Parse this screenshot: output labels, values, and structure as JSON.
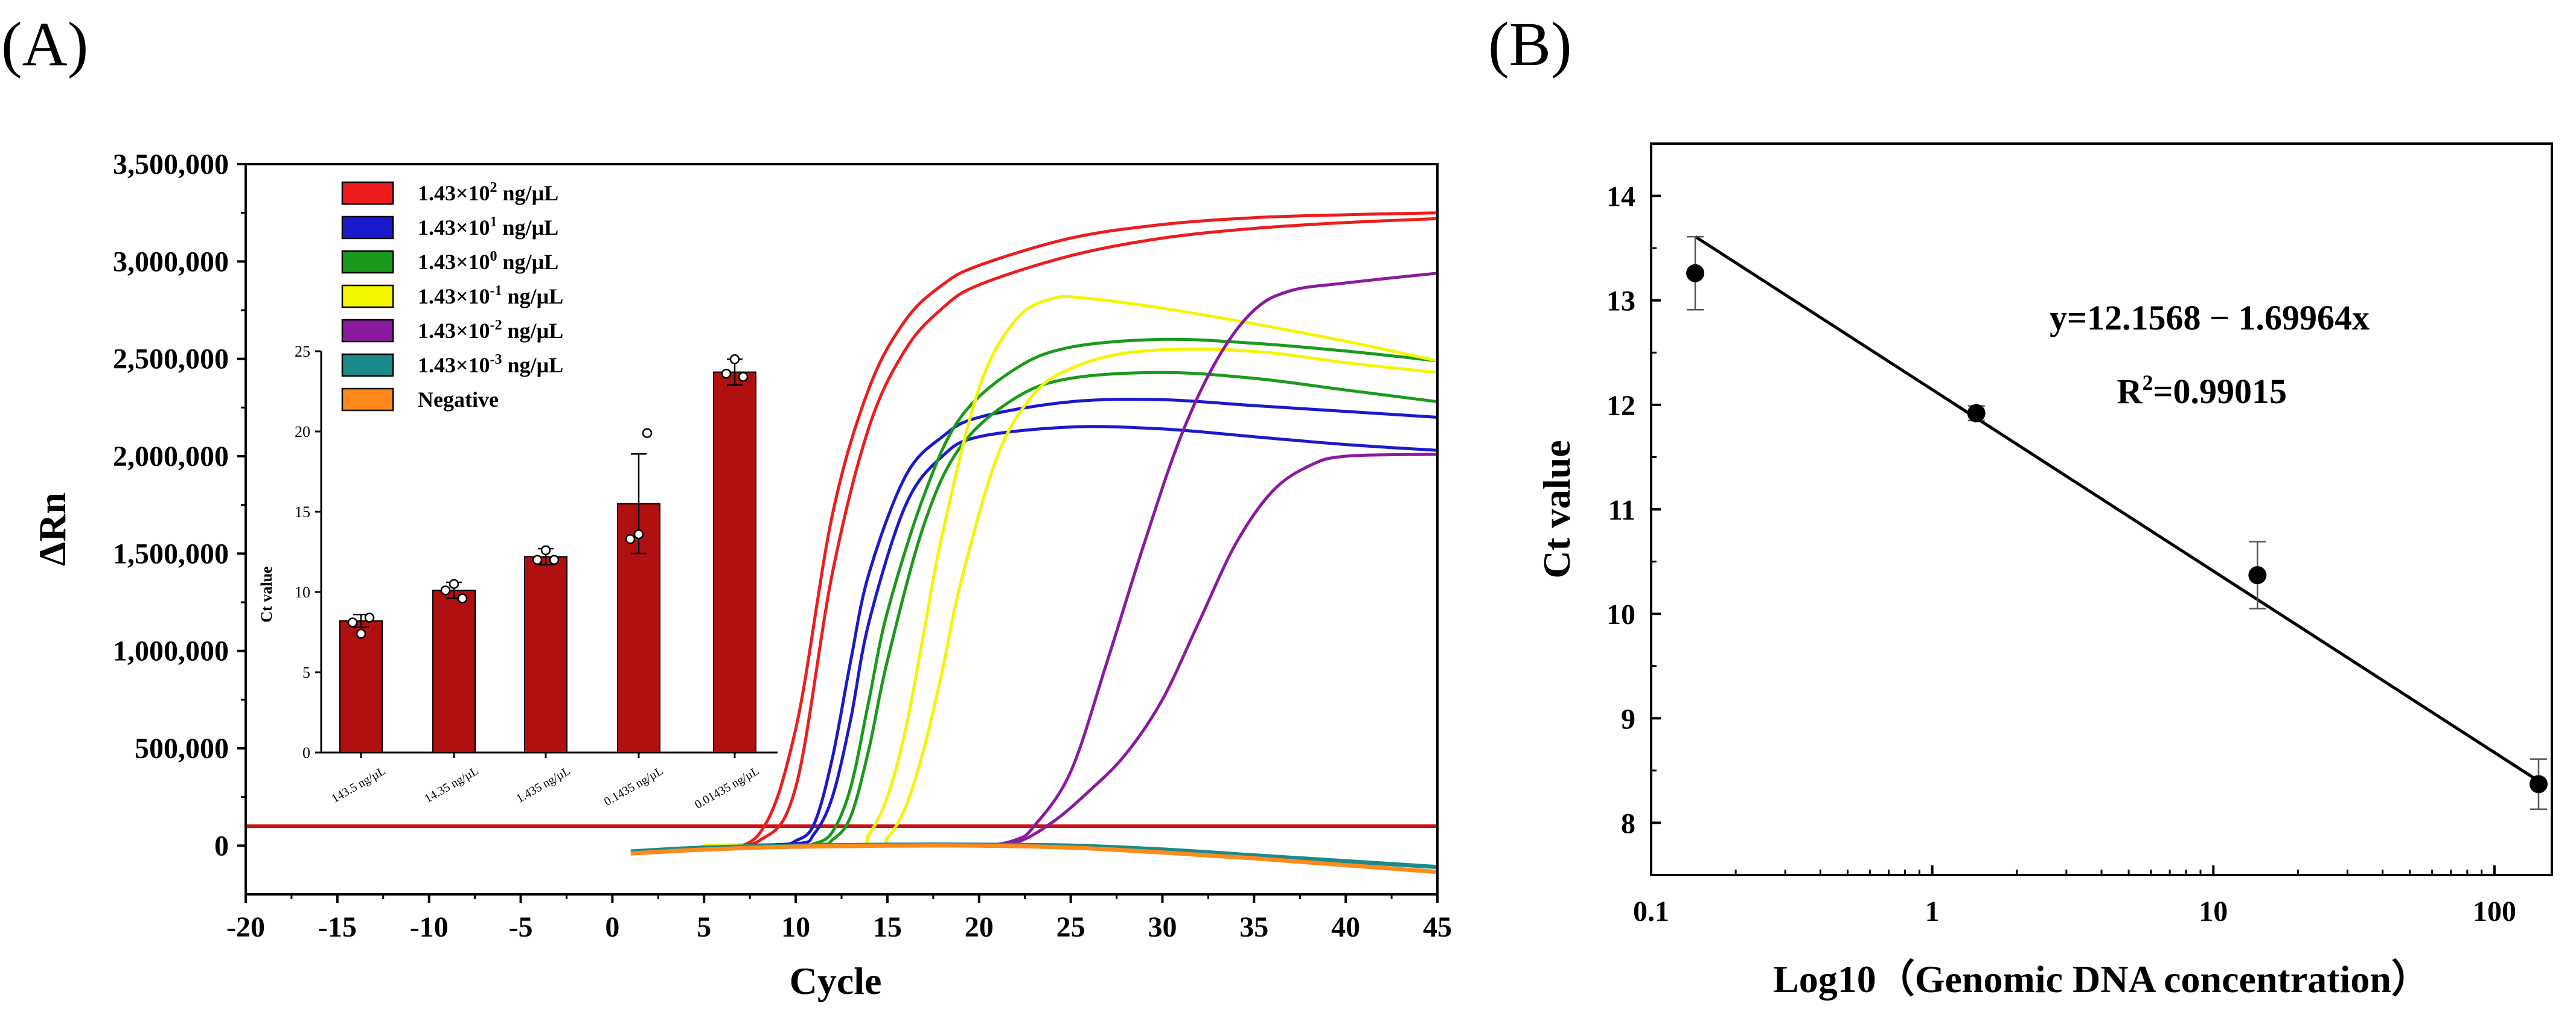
{
  "figure": {
    "panel_a_label": "(A)",
    "panel_b_label": "(B)"
  },
  "chart_data": [
    {
      "id": "A",
      "type": "line",
      "title": "",
      "xlabel": "Cycle",
      "ylabel": "ΔRn",
      "xlim": [
        -20,
        45
      ],
      "ylim": [
        -250000,
        3500000
      ],
      "xticks": [
        -20,
        -15,
        -10,
        -5,
        0,
        5,
        10,
        15,
        20,
        25,
        30,
        35,
        40,
        45
      ],
      "yticks": [
        0,
        500000,
        1000000,
        1500000,
        2000000,
        2500000,
        3000000,
        3500000
      ],
      "ytick_labels": [
        "0",
        "500,000",
        "1,000,000",
        "1,500,000",
        "2,000,000",
        "2,500,000",
        "3,000,000",
        "3,500,000"
      ],
      "threshold": {
        "value": 100000,
        "color": "#c81414"
      },
      "legend": [
        {
          "base": "1.43×10",
          "exp": "2",
          "unit": " ng/µL",
          "color": "#ee1c1c"
        },
        {
          "base": "1.43×10",
          "exp": "1",
          "unit": " ng/µL",
          "color": "#1a1acd"
        },
        {
          "base": "1.43×10",
          "exp": "0",
          "unit": " ng/µL",
          "color": "#1a9a1a"
        },
        {
          "base": "1.43×10",
          "exp": "-1",
          "unit": " ng/µL",
          "color": "#f5f500"
        },
        {
          "base": "1.43×10",
          "exp": "-2",
          "unit": " ng/µL",
          "color": "#8a1a9e"
        },
        {
          "base": "1.43×10",
          "exp": "-3",
          "unit": " ng/µL",
          "color": "#1a8a8a"
        },
        {
          "base": "Negative",
          "exp": "",
          "unit": "",
          "color": "#ff8a1a"
        }
      ],
      "series": [
        {
          "name": "1.43×10^2 ng/µL rep1",
          "color": "#ee1c1c",
          "x": [
            2,
            5,
            8,
            10,
            12,
            14,
            16,
            18,
            20,
            25,
            30,
            35,
            40,
            45
          ],
          "y": [
            -30000,
            -5000,
            60000,
            600000,
            1700000,
            2350000,
            2700000,
            2880000,
            2980000,
            3120000,
            3190000,
            3225000,
            3240000,
            3250000
          ]
        },
        {
          "name": "1.43×10^2 ng/µL rep2",
          "color": "#ee1c1c",
          "x": [
            2,
            5,
            8,
            10,
            12,
            14,
            16,
            18,
            20,
            25,
            30,
            35,
            40,
            45
          ],
          "y": [
            -30000,
            -10000,
            25000,
            300000,
            1400000,
            2150000,
            2550000,
            2760000,
            2880000,
            3030000,
            3120000,
            3170000,
            3200000,
            3220000
          ]
        },
        {
          "name": "1.43×10^1 ng/µL rep1",
          "color": "#1a1acd",
          "x": [
            5,
            9,
            10,
            11,
            12,
            13,
            14,
            16,
            18,
            20,
            25,
            30,
            35,
            40,
            45
          ],
          "y": [
            0,
            5000,
            25000,
            110000,
            450000,
            950000,
            1400000,
            1900000,
            2100000,
            2200000,
            2280000,
            2290000,
            2260000,
            2230000,
            2200000
          ]
        },
        {
          "name": "1.43×10^1 ng/µL rep2",
          "color": "#1a1acd",
          "x": [
            5,
            10,
            11,
            12,
            13,
            14,
            16,
            18,
            20,
            25,
            30,
            35,
            40,
            45
          ],
          "y": [
            0,
            10000,
            60000,
            250000,
            650000,
            1150000,
            1750000,
            2000000,
            2100000,
            2150000,
            2140000,
            2100000,
            2060000,
            2030000
          ]
        },
        {
          "name": "1.43×10^0 ng/µL rep1",
          "color": "#1a9a1a",
          "x": [
            5,
            10,
            11,
            12,
            13,
            14,
            15,
            17,
            19,
            22,
            25,
            30,
            35,
            40,
            45
          ],
          "y": [
            0,
            0,
            10000,
            70000,
            300000,
            750000,
            1200000,
            1800000,
            2200000,
            2450000,
            2560000,
            2600000,
            2580000,
            2540000,
            2490000
          ]
        },
        {
          "name": "1.43×10^0 ng/µL rep2",
          "color": "#1a9a1a",
          "x": [
            5,
            11,
            12,
            13,
            14,
            15,
            17,
            19,
            22,
            25,
            30,
            35,
            40,
            45
          ],
          "y": [
            0,
            5000,
            30000,
            150000,
            500000,
            950000,
            1650000,
            2050000,
            2300000,
            2400000,
            2430000,
            2400000,
            2340000,
            2280000
          ]
        },
        {
          "name": "1.43×10^-1 ng/µL rep1",
          "color": "#f5f500",
          "x": [
            5,
            13,
            14,
            15,
            16,
            17,
            18,
            20,
            22,
            24,
            26,
            30,
            35,
            40,
            45
          ],
          "y": [
            0,
            0,
            60000,
            250000,
            600000,
            1100000,
            1600000,
            2350000,
            2700000,
            2810000,
            2810000,
            2760000,
            2680000,
            2590000,
            2490000
          ]
        },
        {
          "name": "1.43×10^-1 ng/µL rep2",
          "color": "#f5f500",
          "x": [
            5,
            14,
            15,
            16,
            17,
            18,
            19,
            21,
            23,
            25,
            28,
            32,
            36,
            40,
            45
          ],
          "y": [
            0,
            0,
            40000,
            200000,
            500000,
            900000,
            1350000,
            2000000,
            2320000,
            2450000,
            2530000,
            2550000,
            2530000,
            2480000,
            2430000
          ]
        },
        {
          "name": "1.43×10^-2 ng/µL rep1",
          "color": "#8a1a9e",
          "x": [
            3,
            15,
            20,
            22,
            23,
            25,
            27,
            29,
            31,
            33,
            35,
            37,
            40,
            45
          ],
          "y": [
            -20000,
            0,
            0,
            30000,
            100000,
            380000,
            950000,
            1550000,
            2100000,
            2500000,
            2750000,
            2850000,
            2890000,
            2940000
          ]
        },
        {
          "name": "1.43×10^-2 ng/µL rep2",
          "color": "#8a1a9e",
          "x": [
            3,
            15,
            20,
            22,
            24,
            26,
            28,
            30,
            32,
            34,
            36,
            38,
            40,
            45
          ],
          "y": [
            -20000,
            0,
            0,
            15000,
            120000,
            280000,
            470000,
            750000,
            1150000,
            1550000,
            1820000,
            1950000,
            2000000,
            2010000
          ]
        },
        {
          "name": "1.43×10^-3 ng/µL",
          "color": "#1a8a8a",
          "x": [
            1,
            5,
            10,
            15,
            20,
            25,
            30,
            35,
            40,
            45
          ],
          "y": [
            -30000,
            -10000,
            0,
            5000,
            5000,
            0,
            -20000,
            -50000,
            -80000,
            -110000
          ]
        },
        {
          "name": "Negative",
          "color": "#ff8a1a",
          "x": [
            1,
            5,
            10,
            15,
            20,
            25,
            30,
            35,
            40,
            45
          ],
          "y": [
            -40000,
            -20000,
            -5000,
            0,
            0,
            -10000,
            -35000,
            -65000,
            -100000,
            -135000
          ]
        }
      ]
    },
    {
      "id": "A-inset",
      "type": "bar",
      "title": "",
      "xlabel": "",
      "ylabel": "Ct value",
      "ylim": [
        0,
        25
      ],
      "yticks": [
        0,
        5,
        10,
        15,
        20,
        25
      ],
      "categories": [
        "143.5 ng/µL",
        "14.35 ng/µL",
        "1.435 ng/µL",
        "0.1435 ng/µL",
        "0.01435 ng/µL"
      ],
      "values": [
        8.2,
        10.1,
        12.2,
        15.5,
        23.7
      ],
      "errors": [
        0.4,
        0.5,
        0.5,
        3.1,
        0.8
      ],
      "points": [
        [
          8.1,
          7.4,
          8.4
        ],
        [
          10.1,
          10.5,
          9.6
        ],
        [
          12.0,
          12.6,
          12.0
        ],
        [
          13.3,
          13.6,
          19.9
        ],
        [
          23.6,
          24.5,
          23.4
        ]
      ],
      "bar_color": "#b01010"
    },
    {
      "id": "B",
      "type": "scatter",
      "title": "",
      "xlabel": "Log10（Genomic DNA concentration）",
      "ylabel": "Ct value",
      "xscale": "log",
      "xlim": [
        0.1,
        160
      ],
      "ylim": [
        7.5,
        14.5
      ],
      "xticks": [
        0.1,
        1,
        10,
        100
      ],
      "xtick_labels": [
        "0.1",
        "1",
        "10",
        "100"
      ],
      "yticks": [
        8,
        9,
        10,
        11,
        12,
        13,
        14
      ],
      "x": [
        0.1435,
        1.435,
        14.35,
        143.5
      ],
      "y": [
        13.26,
        11.92,
        10.37,
        8.37
      ],
      "y_err": [
        0.35,
        0.07,
        0.32,
        0.24
      ],
      "fit": {
        "x_start": 0.1435,
        "x_end": 143.5,
        "y_start": 13.61,
        "y_end": 8.4
      },
      "equation": "y=12.1568 − 1.69964x",
      "r2_label": "R",
      "r2_exp": "2",
      "r2_value": "=0.99015"
    }
  ]
}
